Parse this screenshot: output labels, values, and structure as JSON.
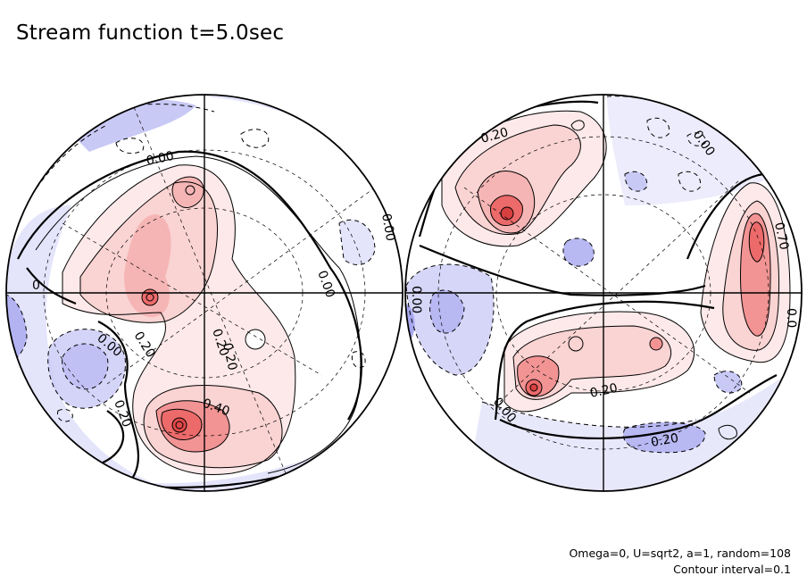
{
  "title": "Stream function t=5.0sec",
  "footer": {
    "params": "Omega=0, U=sqrt2, a=1, random=108",
    "interval": "Contour interval=0.1"
  },
  "chart_data": {
    "type": "contour",
    "title": "Stream function t=5.0sec",
    "projection": "orthographic hemispheres (two views)",
    "contour_interval": 0.1,
    "colors": {
      "positive": "#e85050",
      "negative": "#5a5ae6",
      "background": "#ffffff"
    },
    "hemispheres": [
      {
        "name": "left",
        "contour_labels": [
          "0.00",
          "0.00",
          "0.00",
          "0.00",
          "0.20",
          "0.20",
          "0.40",
          "0.00",
          "0.20",
          "0.20",
          "0"
        ],
        "extrema": [
          {
            "kind": "max",
            "value": 0.5,
            "region": "lower-center"
          },
          {
            "kind": "max",
            "value": 0.3,
            "region": "upper-left"
          },
          {
            "kind": "min",
            "value": -0.2,
            "region": "left"
          }
        ]
      },
      {
        "name": "right",
        "contour_labels": [
          "0.20",
          "0.00",
          "0.70",
          "0.00",
          "0.20",
          "0.20",
          "0.00",
          "0.00",
          "0.0"
        ],
        "extrema": [
          {
            "kind": "max",
            "value": 0.5,
            "region": "upper-left"
          },
          {
            "kind": "max",
            "value": 0.4,
            "region": "right"
          },
          {
            "kind": "max",
            "value": 0.5,
            "region": "lower-left"
          },
          {
            "kind": "min",
            "value": -0.2,
            "region": "left"
          }
        ]
      }
    ]
  }
}
